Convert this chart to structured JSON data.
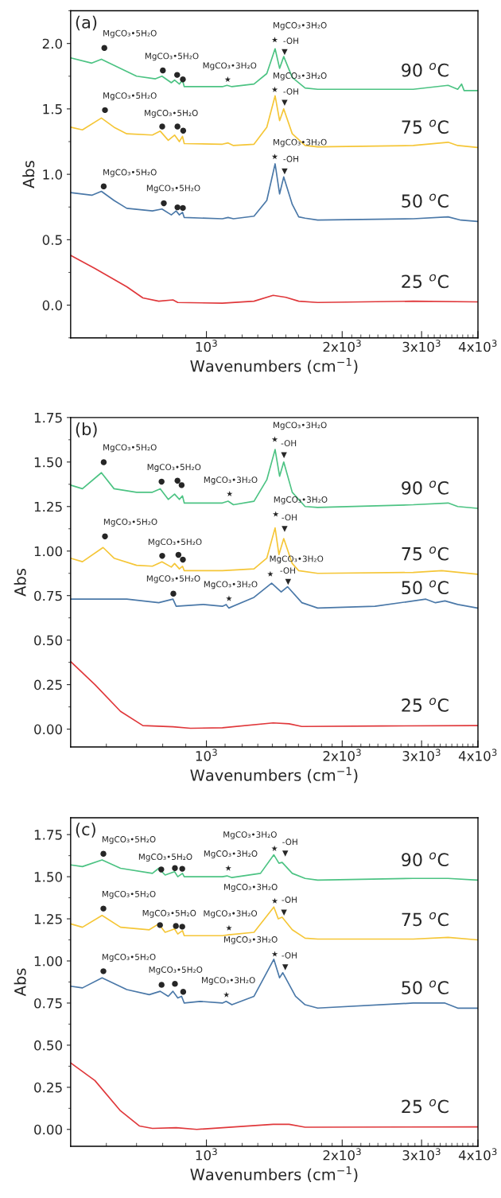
{
  "chart_data": [
    {
      "type": "line",
      "xlabel": "Wavenumbers (cm$^{−1}$)",
      "ylabel": "Abs",
      "log": "x",
      "xlim": [
        500,
        4000
      ],
      "xticks": [
        {
          "value": 1000,
          "label": "10$^{3}$"
        },
        {
          "value": 2000,
          "label": "2x10$^{3}$"
        },
        {
          "value": 3000,
          "label": "3x10$^{3}$"
        },
        {
          "value": 4000,
          "label": "4x10$^{3}$"
        }
      ],
      "ylim": [
        -0.25,
        2.25
      ],
      "yticks": [
        {
          "value": 0,
          "label": "0.0"
        },
        0.5,
        {
          "value": 1,
          "label": "1.0"
        },
        1.5,
        {
          "value": 2,
          "label": "2.0"
        }
      ],
      "grid": false,
      "legend": false,
      "line_style": "solid",
      "marker": "none",
      "series": [
        {
          "name": "90 $^{o}$C",
          "color": "#4cc383",
          "x": [
            500,
            557,
            585,
            700,
            771,
            797,
            836,
            850,
            871,
            885,
            893,
            1085,
            1111,
            1139,
            1275,
            1361,
            1420,
            1453,
            1484,
            1550,
            1655,
            1765,
            2874,
            3435,
            3607,
            3679,
            3727,
            3990
          ],
          "values": [
            1.89,
            1.85,
            1.88,
            1.75,
            1.73,
            1.75,
            1.7,
            1.72,
            1.69,
            1.72,
            1.67,
            1.67,
            1.68,
            1.67,
            1.69,
            1.77,
            1.96,
            1.81,
            1.9,
            1.74,
            1.66,
            1.65,
            1.65,
            1.68,
            1.65,
            1.69,
            1.64,
            1.64
          ]
        },
        {
          "name": "75 $^{o}$C",
          "color": "#f5c637",
          "x": [
            500,
            531,
            585,
            624,
            666,
            759,
            790,
            823,
            850,
            871,
            885,
            893,
            1085,
            1117,
            1148,
            1275,
            1361,
            1420,
            1453,
            1484,
            1550,
            1655,
            1765,
            2874,
            3435,
            3607,
            3990
          ],
          "values": [
            1.36,
            1.34,
            1.43,
            1.36,
            1.31,
            1.3,
            1.33,
            1.26,
            1.3,
            1.25,
            1.29,
            1.235,
            1.23,
            1.24,
            1.22,
            1.23,
            1.36,
            1.6,
            1.41,
            1.5,
            1.31,
            1.22,
            1.21,
            1.22,
            1.245,
            1.22,
            1.205
          ]
        },
        {
          "name": "50 $^{o}$C",
          "color": "#4a78a8",
          "x": [
            500,
            557,
            585,
            624,
            666,
            759,
            797,
            836,
            857,
            871,
            885,
            893,
            1085,
            1117,
            1148,
            1275,
            1361,
            1420,
            1453,
            1484,
            1550,
            1602,
            1655,
            1765,
            2874,
            3435,
            3665,
            3990
          ],
          "values": [
            0.86,
            0.84,
            0.87,
            0.8,
            0.74,
            0.72,
            0.735,
            0.69,
            0.72,
            0.69,
            0.71,
            0.67,
            0.66,
            0.67,
            0.66,
            0.68,
            0.8,
            1.08,
            0.85,
            0.98,
            0.77,
            0.675,
            0.665,
            0.65,
            0.66,
            0.675,
            0.65,
            0.64
          ]
        },
        {
          "name": "25 $^{o}$C",
          "color": "#e0383b",
          "x": [
            500,
            566,
            666,
            723,
            784,
            843,
            864,
            1085,
            1275,
            1406,
            1500,
            1602,
            1765,
            2874,
            3990
          ],
          "values": [
            0.38,
            0.28,
            0.14,
            0.055,
            0.03,
            0.04,
            0.02,
            0.015,
            0.03,
            0.075,
            0.06,
            0.03,
            0.02,
            0.03,
            0.025
          ]
        }
      ],
      "annotations": [
        "(a)",
        "MgCO₃•5H₂O",
        "●",
        "MgCO₃•5H₂O",
        "●",
        "●",
        "●",
        "MgCO₃•3H₂O",
        "★",
        "MgCO₃•3H₂O",
        "★",
        "-OH",
        "▼",
        "MgCO₃•5H₂O",
        "●",
        "MgCO₃•5H₂O",
        "●",
        "●",
        "●",
        "MgCO₃•3H₂O",
        "★",
        "-OH",
        "▼",
        "MgCO₃•5H₂O",
        "●",
        "MgCO₃•5H₂O",
        "●",
        "●",
        "●",
        "MgCO₃•3H₂O",
        "★",
        "-OH",
        "▼"
      ]
    },
    {
      "type": "line",
      "xlabel": "Wavenumbers (cm$^{−1}$)",
      "ylabel": "Abs",
      "log": "x",
      "xlim": [
        500,
        4000
      ],
      "xticks": [
        {
          "value": 1000,
          "label": "10$^{3}$"
        },
        {
          "value": 2000,
          "label": "2x10$^{3}$"
        },
        {
          "value": 3000,
          "label": "3x10$^{3}$"
        },
        {
          "value": 4000,
          "label": "4x10$^{3}$"
        }
      ],
      "ylim": [
        -0.1,
        1.75
      ],
      "yticks": [
        {
          "value": 0,
          "label": "0.00"
        },
        0.25,
        {
          "value": 0.5,
          "label": "0.50"
        },
        0.75,
        {
          "value": 1,
          "label": "1.00"
        },
        1.25,
        {
          "value": 1.5,
          "label": "1.50"
        },
        1.75
      ],
      "grid": false,
      "legend": false,
      "line_style": "solid",
      "marker": "none",
      "series": [
        {
          "name": "90 $^{o}$C",
          "color": "#4cc383",
          "x": [
            500,
            531,
            585,
            624,
            700,
            759,
            790,
            823,
            850,
            871,
            885,
            893,
            1085,
            1117,
            1148,
            1275,
            1361,
            1420,
            1453,
            1484,
            1550,
            1655,
            1765,
            2874,
            3435,
            3607,
            3990
          ],
          "values": [
            1.37,
            1.35,
            1.44,
            1.35,
            1.33,
            1.33,
            1.35,
            1.29,
            1.32,
            1.29,
            1.31,
            1.27,
            1.27,
            1.28,
            1.26,
            1.28,
            1.4,
            1.57,
            1.42,
            1.5,
            1.33,
            1.25,
            1.245,
            1.26,
            1.27,
            1.25,
            1.24
          ]
        },
        {
          "name": "75 $^{o}$C",
          "color": "#f5c637",
          "x": [
            500,
            531,
            590,
            624,
            700,
            759,
            797,
            836,
            850,
            871,
            885,
            893,
            1085,
            1275,
            1361,
            1420,
            1448,
            1484,
            1550,
            1602,
            1765,
            2874,
            3325,
            3990
          ],
          "values": [
            0.96,
            0.94,
            1.02,
            0.96,
            0.92,
            0.915,
            0.94,
            0.91,
            0.93,
            0.9,
            0.915,
            0.89,
            0.89,
            0.9,
            0.96,
            1.13,
            0.98,
            1.07,
            0.93,
            0.89,
            0.875,
            0.88,
            0.89,
            0.87
          ]
        },
        {
          "name": "50 $^{o}$C",
          "color": "#4a78a8",
          "x": [
            500,
            666,
            784,
            843,
            857,
            984,
            1085,
            1106,
            1121,
            1275,
            1395,
            1465,
            1513,
            1628,
            1765,
            2365,
            3066,
            3220,
            3380,
            3607,
            3990
          ],
          "values": [
            0.73,
            0.73,
            0.71,
            0.73,
            0.69,
            0.7,
            0.69,
            0.7,
            0.68,
            0.74,
            0.82,
            0.77,
            0.8,
            0.71,
            0.68,
            0.69,
            0.73,
            0.71,
            0.72,
            0.7,
            0.68
          ]
        },
        {
          "name": "25 $^{o}$C",
          "color": "#e0383b",
          "x": [
            500,
            566,
            645,
            723,
            843,
            922,
            1085,
            1406,
            1525,
            1628,
            2443,
            3990
          ],
          "values": [
            0.38,
            0.25,
            0.1,
            0.02,
            0.013,
            0.005,
            0.008,
            0.035,
            0.03,
            0.015,
            0.018,
            0.02
          ]
        }
      ],
      "annotations": [
        "(b)",
        "MgCO₃•5H₂O",
        "●",
        "MgCO₃•5H₂O",
        "●",
        "●",
        "●",
        "MgCO₃•3H₂O",
        "★",
        "MgCO₃•3H₂O",
        "★",
        "-OH",
        "▼",
        "MgCO₃•5H₂O",
        "●",
        "MgCO₃•5H₂O",
        "●",
        "●",
        "●",
        "MgCO₃•3H₂O",
        "★",
        "-OH",
        "▼",
        "MgCO₃•3H₂O",
        "★",
        "-OH",
        "▼",
        "MgCO₃•5H₂O",
        "●",
        "MgCO₃•3H₂O",
        "★"
      ]
    },
    {
      "type": "line",
      "xlabel": "Wavenumbers (cm$^{−1}$)",
      "ylabel": "Abs",
      "log": "x",
      "xlim": [
        500,
        4000
      ],
      "xticks": [
        {
          "value": 1000,
          "label": "10$^{3}$"
        },
        {
          "value": 2000,
          "label": "2x10$^{3}$"
        },
        {
          "value": 3000,
          "label": "3x10$^{3}$"
        },
        {
          "value": 4000,
          "label": "4x10$^{3}$"
        }
      ],
      "ylim": [
        -0.1,
        1.85
      ],
      "yticks": [
        {
          "value": 0,
          "label": "0.00"
        },
        0.25,
        {
          "value": 0.5,
          "label": "0.50"
        },
        0.75,
        {
          "value": 1,
          "label": "1.00"
        },
        1.25,
        {
          "value": 1.5,
          "label": "1.50"
        },
        1.75
      ],
      "grid": false,
      "legend": false,
      "line_style": "solid",
      "marker": "none",
      "series": [
        {
          "name": "90 $^{o}$C",
          "color": "#4cc383",
          "x": [
            500,
            531,
            587,
            645,
            759,
            784,
            810,
            850,
            864,
            885,
            893,
            1085,
            1111,
            1139,
            1318,
            1411,
            1448,
            1472,
            1550,
            1655,
            1765,
            2874,
            3435,
            3990
          ],
          "values": [
            1.57,
            1.56,
            1.6,
            1.55,
            1.52,
            1.55,
            1.51,
            1.53,
            1.5,
            1.52,
            1.5,
            1.5,
            1.505,
            1.495,
            1.52,
            1.63,
            1.58,
            1.585,
            1.52,
            1.49,
            1.48,
            1.49,
            1.49,
            1.48
          ]
        },
        {
          "name": "75 $^{o}$C",
          "color": "#f5c637",
          "x": [
            500,
            531,
            587,
            645,
            747,
            784,
            810,
            850,
            864,
            885,
            893,
            1085,
            1121,
            1275,
            1411,
            1443,
            1472,
            1550,
            1655,
            1765,
            2874,
            3435,
            3990
          ],
          "values": [
            1.22,
            1.2,
            1.27,
            1.2,
            1.185,
            1.22,
            1.17,
            1.19,
            1.16,
            1.18,
            1.15,
            1.15,
            1.155,
            1.17,
            1.32,
            1.25,
            1.26,
            1.185,
            1.135,
            1.13,
            1.13,
            1.14,
            1.125
          ]
        },
        {
          "name": "50 $^{o}$C",
          "color": "#4a78a8",
          "x": [
            500,
            531,
            587,
            666,
            747,
            790,
            823,
            843,
            864,
            881,
            893,
            968,
            1085,
            1106,
            1139,
            1275,
            1411,
            1453,
            1477,
            1576,
            1655,
            1765,
            2874,
            3380,
            3607,
            3990
          ],
          "values": [
            0.85,
            0.84,
            0.9,
            0.83,
            0.8,
            0.82,
            0.79,
            0.82,
            0.78,
            0.79,
            0.75,
            0.76,
            0.75,
            0.76,
            0.74,
            0.79,
            1.01,
            0.9,
            0.93,
            0.79,
            0.74,
            0.72,
            0.75,
            0.75,
            0.72,
            0.72
          ]
        },
        {
          "name": "25 $^{o}$C",
          "color": "#e0383b",
          "x": [
            500,
            566,
            645,
            711,
            759,
            857,
            952,
            1406,
            1525,
            1655,
            3990
          ],
          "values": [
            0.395,
            0.29,
            0.11,
            0.02,
            0.006,
            0.01,
            0.0,
            0.03,
            0.03,
            0.013,
            0.015
          ]
        }
      ],
      "annotations": [
        "(c)",
        "MgCO₃•5H₂O",
        "●",
        "MgCO₃•5H₂O",
        "●",
        "●",
        "●",
        "MgCO₃•3H₂O",
        "★",
        "MgCO₃•3H₂O",
        "★",
        "-OH",
        "▼",
        "MgCO₃•5H₂O",
        "●",
        "MgCO₃•5H₂O",
        "●",
        "●",
        "●",
        "MgCO₃•3H₂O",
        "★",
        "MgCO₃•3H₂O",
        "★",
        "-OH",
        "▼",
        "MgCO₃•3H₂O",
        "★",
        "-OH",
        "▼",
        "MgCO₃•5H₂O",
        "●",
        "MgCO₃•5H₂O",
        "●",
        "●",
        "●",
        "MgCO₃•3H₂O",
        "★"
      ]
    }
  ]
}
